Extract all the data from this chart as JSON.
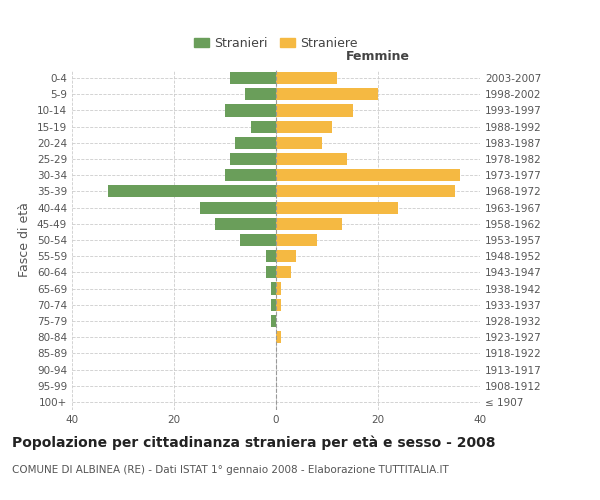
{
  "age_groups": [
    "100+",
    "95-99",
    "90-94",
    "85-89",
    "80-84",
    "75-79",
    "70-74",
    "65-69",
    "60-64",
    "55-59",
    "50-54",
    "45-49",
    "40-44",
    "35-39",
    "30-34",
    "25-29",
    "20-24",
    "15-19",
    "10-14",
    "5-9",
    "0-4"
  ],
  "birth_years": [
    "≤ 1907",
    "1908-1912",
    "1913-1917",
    "1918-1922",
    "1923-1927",
    "1928-1932",
    "1933-1937",
    "1938-1942",
    "1943-1947",
    "1948-1952",
    "1953-1957",
    "1958-1962",
    "1963-1967",
    "1968-1972",
    "1973-1977",
    "1978-1982",
    "1983-1987",
    "1988-1992",
    "1993-1997",
    "1998-2002",
    "2003-2007"
  ],
  "males": [
    0,
    0,
    0,
    0,
    0,
    1,
    1,
    1,
    2,
    2,
    7,
    12,
    15,
    33,
    10,
    9,
    8,
    5,
    10,
    6,
    9
  ],
  "females": [
    0,
    0,
    0,
    0,
    1,
    0,
    1,
    1,
    3,
    4,
    8,
    13,
    24,
    35,
    36,
    14,
    9,
    11,
    15,
    20,
    12
  ],
  "male_color": "#6a9e5a",
  "female_color": "#f5b942",
  "grid_color": "#cccccc",
  "title": "Popolazione per cittadinanza straniera per età e sesso - 2008",
  "subtitle": "COMUNE DI ALBINEA (RE) - Dati ISTAT 1° gennaio 2008 - Elaborazione TUTTITALIA.IT",
  "ylabel_left": "Fasce di età",
  "xlabel_right": "Femmine",
  "legend_stranieri": "Stranieri",
  "legend_straniere": "Straniere",
  "xlim": 40,
  "title_fontsize": 10,
  "subtitle_fontsize": 7.5,
  "axis_label_fontsize": 9,
  "tick_fontsize": 7.5
}
